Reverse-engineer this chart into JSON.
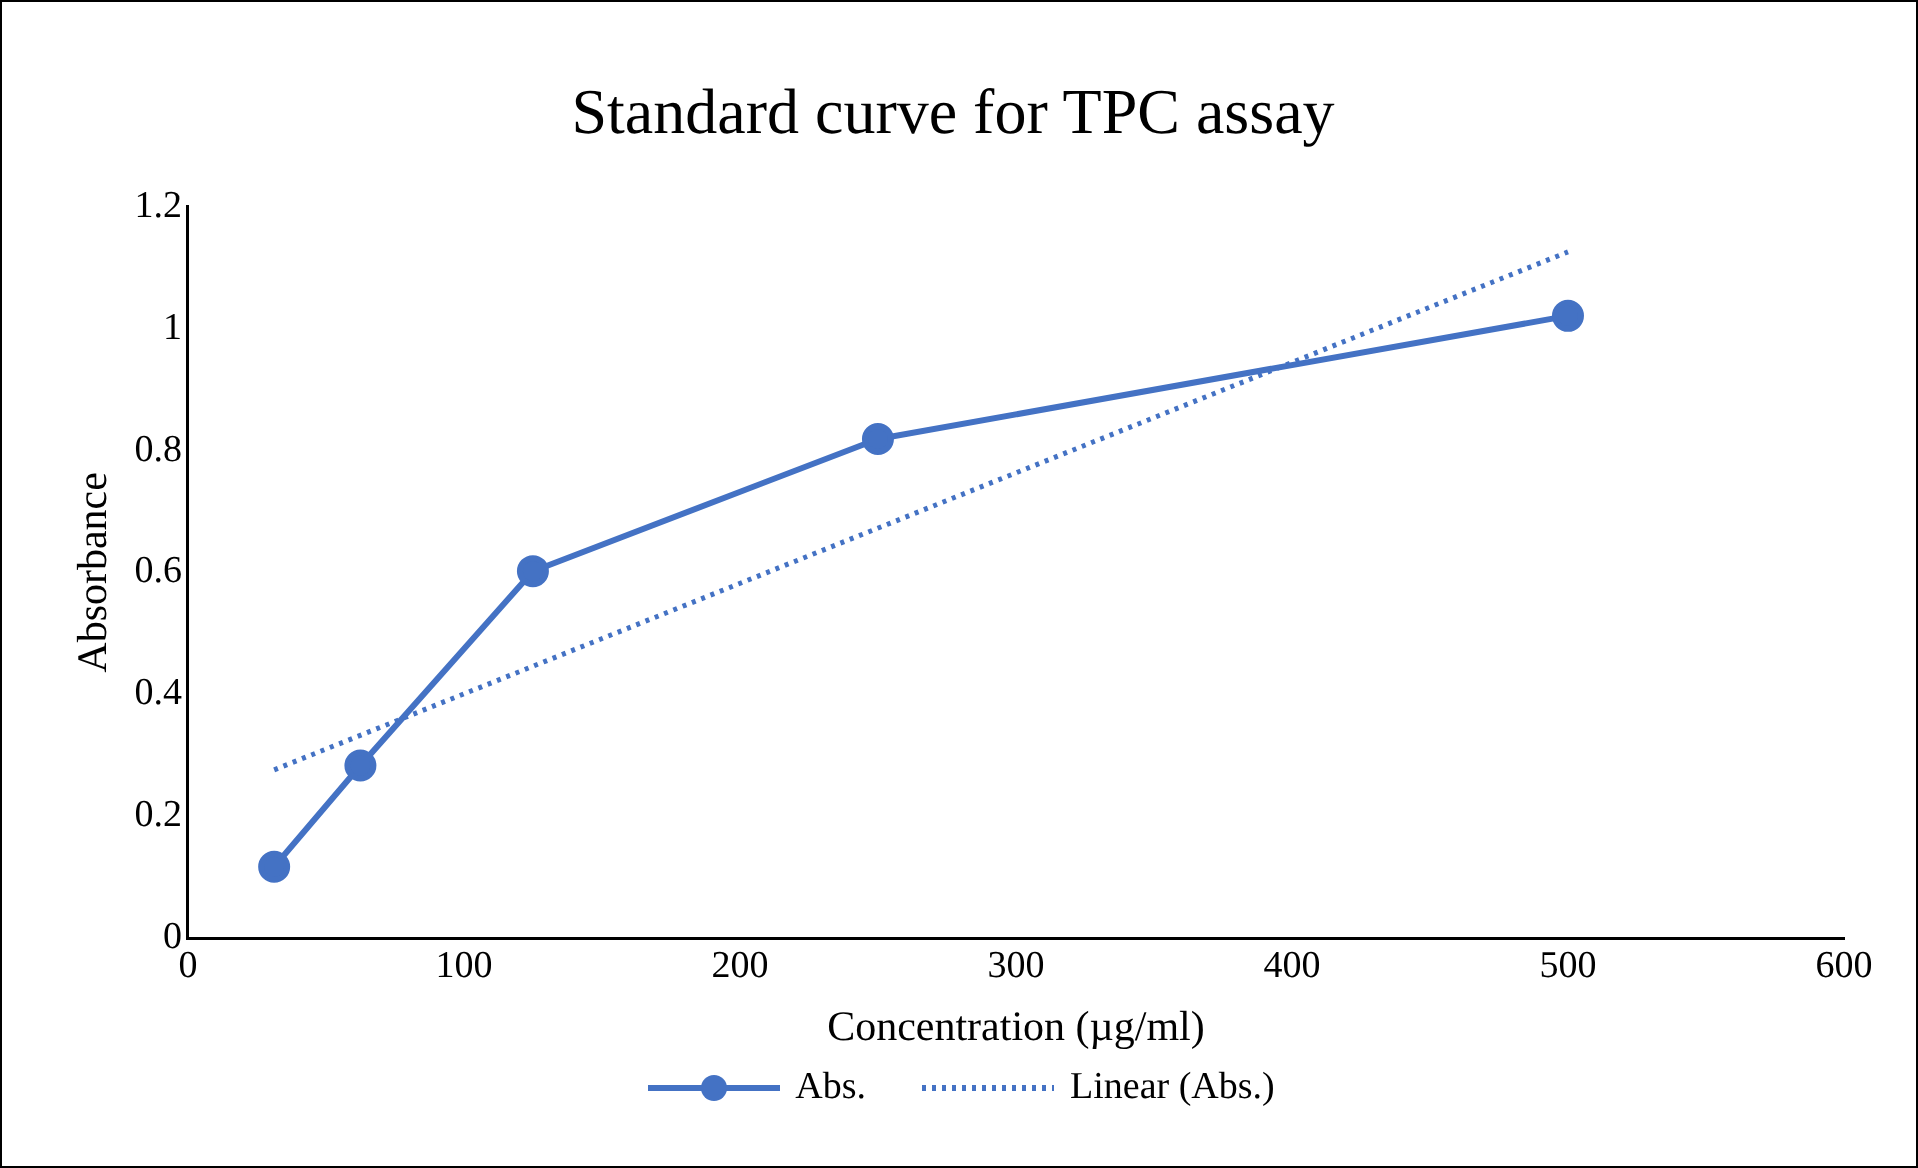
{
  "chart_data": {
    "type": "line",
    "title": "Standard curve for TPC assay",
    "xlabel": "Concentration (µg/ml)",
    "ylabel": "Absorbance",
    "series": [
      {
        "name": "Abs.",
        "color": "#4472c4",
        "x": [
          31.25,
          62.5,
          125,
          250,
          500
        ],
        "values": [
          0.117,
          0.283,
          0.602,
          0.819,
          1.021
        ],
        "marker": "circle",
        "line_style": "solid"
      },
      {
        "name": "Linear (Abs.)",
        "type": "line",
        "color": "#4472c4",
        "x": [
          31.25,
          500
        ],
        "values": [
          0.276,
          1.126
        ],
        "marker": "none",
        "line_style": "dotted"
      }
    ],
    "xlim": [
      0,
      600
    ],
    "xticks": [
      0,
      100,
      200,
      300,
      400,
      500,
      600
    ],
    "ylim": [
      0,
      1.2
    ],
    "yticks": [
      0,
      0.2,
      0.4,
      0.6,
      0.8,
      1,
      1.2
    ],
    "grid": false,
    "legend": "bottom"
  }
}
